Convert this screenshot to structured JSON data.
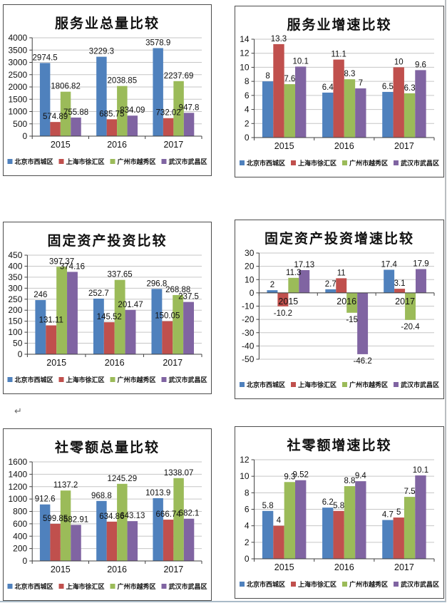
{
  "page": {
    "return_mark": "↵"
  },
  "series_colors": [
    "#4f81bd",
    "#c0504d",
    "#9bbb59",
    "#8064a2"
  ],
  "axis_color": "#404040",
  "grid_color": "#c6c6c6",
  "label_color": "#111111",
  "chart_data": [
    {
      "type": "bar",
      "title": "服务业总量比较",
      "categories": [
        "2015",
        "2016",
        "2017"
      ],
      "series": [
        {
          "name": "北京市西城区",
          "values": [
            2974.5,
            3229.3,
            3578.9
          ]
        },
        {
          "name": "上海市徐汇区",
          "values": [
            574.89,
            685.75,
            732.02
          ]
        },
        {
          "name": "广州市越秀区",
          "values": [
            1806.82,
            2038.85,
            2237.69
          ]
        },
        {
          "name": "武汉市武昌区",
          "values": [
            755.88,
            834.09,
            947.8
          ]
        }
      ],
      "ylim": [
        0,
        4000
      ],
      "ystep": 500,
      "grid": true,
      "data_labels": true,
      "legend_position": "bottom"
    },
    {
      "type": "bar",
      "title": "服务业增速比较",
      "categories": [
        "2015",
        "2016",
        "2017"
      ],
      "series": [
        {
          "name": "北京市西城区",
          "values": [
            8,
            6.4,
            6.5
          ]
        },
        {
          "name": "上海市徐汇区",
          "values": [
            13.3,
            11.1,
            10
          ]
        },
        {
          "name": "广州市越秀区",
          "values": [
            7.6,
            8.3,
            6.3
          ]
        },
        {
          "name": "武汉市武昌区",
          "values": [
            10.1,
            7,
            9.6
          ]
        }
      ],
      "ylim": [
        0,
        14
      ],
      "ystep": 2,
      "grid": true,
      "data_labels": true,
      "legend_position": "bottom"
    },
    {
      "type": "bar",
      "title": "固定资产投资比较",
      "categories": [
        "2015",
        "2016",
        "2017"
      ],
      "series": [
        {
          "name": "北京市西城区",
          "values": [
            246,
            252.7,
            296.8
          ]
        },
        {
          "name": "上海市徐汇区",
          "values": [
            131.11,
            145.52,
            150.05
          ]
        },
        {
          "name": "广州市越秀区",
          "values": [
            397.37,
            337.65,
            268.88
          ]
        },
        {
          "name": "武汉市武昌区",
          "values": [
            374.16,
            201.47,
            237.5
          ]
        }
      ],
      "ylim": [
        0,
        450
      ],
      "ystep": 50,
      "grid": true,
      "data_labels": true,
      "legend_position": "bottom"
    },
    {
      "type": "bar",
      "title": "固定资产投资增速比较",
      "categories": [
        "2015",
        "2016",
        "2017"
      ],
      "series": [
        {
          "name": "北京市西城区",
          "values": [
            2,
            2.7,
            17.4
          ]
        },
        {
          "name": "上海市徐汇区",
          "values": [
            -10.2,
            11,
            3.1
          ]
        },
        {
          "name": "广州市越秀区",
          "values": [
            11.3,
            -15,
            -20.4
          ]
        },
        {
          "name": "武汉市武昌区",
          "values": [
            17.13,
            -46.2,
            17.9
          ]
        }
      ],
      "ylim": [
        -50,
        30
      ],
      "ystep": 10,
      "grid": true,
      "data_labels": true,
      "legend_position": "bottom"
    },
    {
      "type": "bar",
      "title": "社零额总量比较",
      "categories": [
        "2015",
        "2016",
        "2017"
      ],
      "series": [
        {
          "name": "北京市西城区",
          "values": [
            912.6,
            968.8,
            1013.9
          ]
        },
        {
          "name": "上海市徐汇区",
          "values": [
            599.85,
            634.86,
            666.74
          ]
        },
        {
          "name": "广州市越秀区",
          "values": [
            1137.2,
            1245.29,
            1338.07
          ]
        },
        {
          "name": "武汉市武昌区",
          "values": [
            582.91,
            643.13,
            682.1
          ]
        }
      ],
      "ylim": [
        0,
        1600
      ],
      "ystep": 200,
      "grid": true,
      "data_labels": true,
      "legend_position": "bottom"
    },
    {
      "type": "bar",
      "title": "社零额增速比较",
      "categories": [
        "2015",
        "2016",
        "2017"
      ],
      "series": [
        {
          "name": "北京市西城区",
          "values": [
            5.8,
            6.2,
            4.7
          ]
        },
        {
          "name": "上海市徐汇区",
          "values": [
            4,
            5.8,
            5
          ]
        },
        {
          "name": "广州市越秀区",
          "values": [
            9.3,
            8.8,
            7.5
          ]
        },
        {
          "name": "武汉市武昌区",
          "values": [
            9.52,
            9.4,
            10.1
          ]
        }
      ],
      "ylim": [
        0,
        12
      ],
      "ystep": 2,
      "grid": true,
      "data_labels": true,
      "legend_position": "bottom"
    }
  ]
}
